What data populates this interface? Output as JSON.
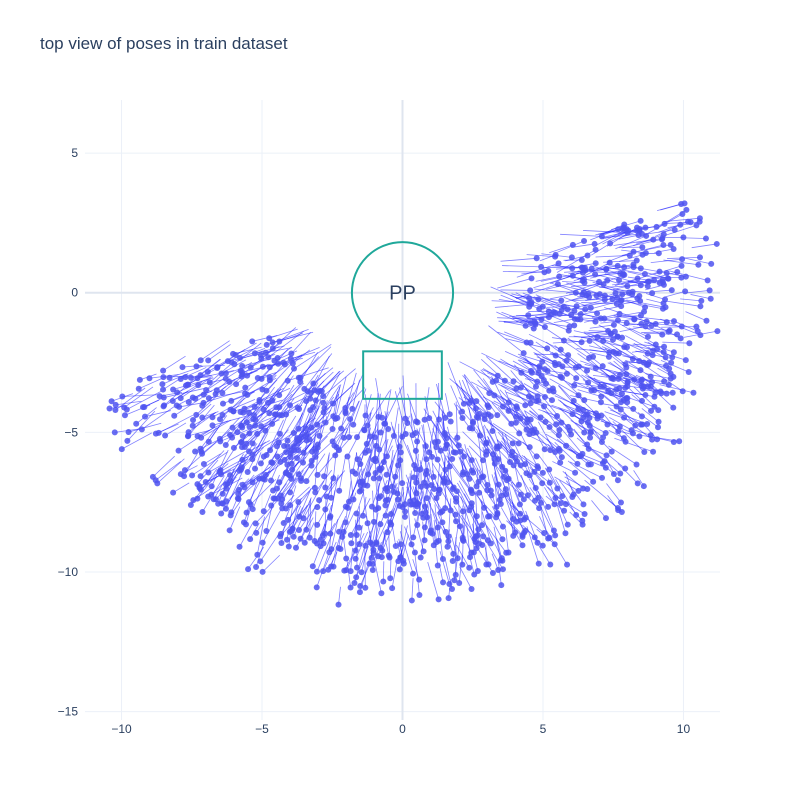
{
  "chart_data": {
    "type": "scatter",
    "title": "top view of poses in train dataset",
    "xlabel": "",
    "ylabel": "",
    "xlim": [
      -11.3,
      11.3
    ],
    "ylim": [
      -15.3,
      6.9
    ],
    "x_ticks": [
      -10,
      -5,
      0,
      5,
      10
    ],
    "y_ticks": [
      -15,
      -10,
      -5,
      0,
      5
    ],
    "x_tick_labels": [
      "−10",
      "−5",
      "0",
      "5",
      "10"
    ],
    "y_tick_labels": [
      "−15",
      "−10",
      "−5",
      "0",
      "5"
    ],
    "grid": true,
    "colors": {
      "points": "#4f54f0",
      "arrows": "#1a1aff",
      "shapes": "#1fa89a",
      "grid": "#ebf0f8",
      "text": "#2a3f5f"
    },
    "pose_distribution": {
      "description_center": [
        0,
        0
      ],
      "inner_radius": 4.5,
      "outer_radius_range": [
        9.5,
        11.5
      ],
      "angle_range_deg": [
        -162,
        18
      ],
      "heading": "toward_center",
      "count": 1400
    },
    "shapes": [
      {
        "type": "circle",
        "center": [
          0,
          0
        ],
        "radius": 1.8,
        "label": "PP"
      },
      {
        "type": "rect",
        "x": [
          -1.4,
          1.4
        ],
        "y": [
          -3.8,
          -2.1
        ],
        "label": ""
      }
    ]
  }
}
